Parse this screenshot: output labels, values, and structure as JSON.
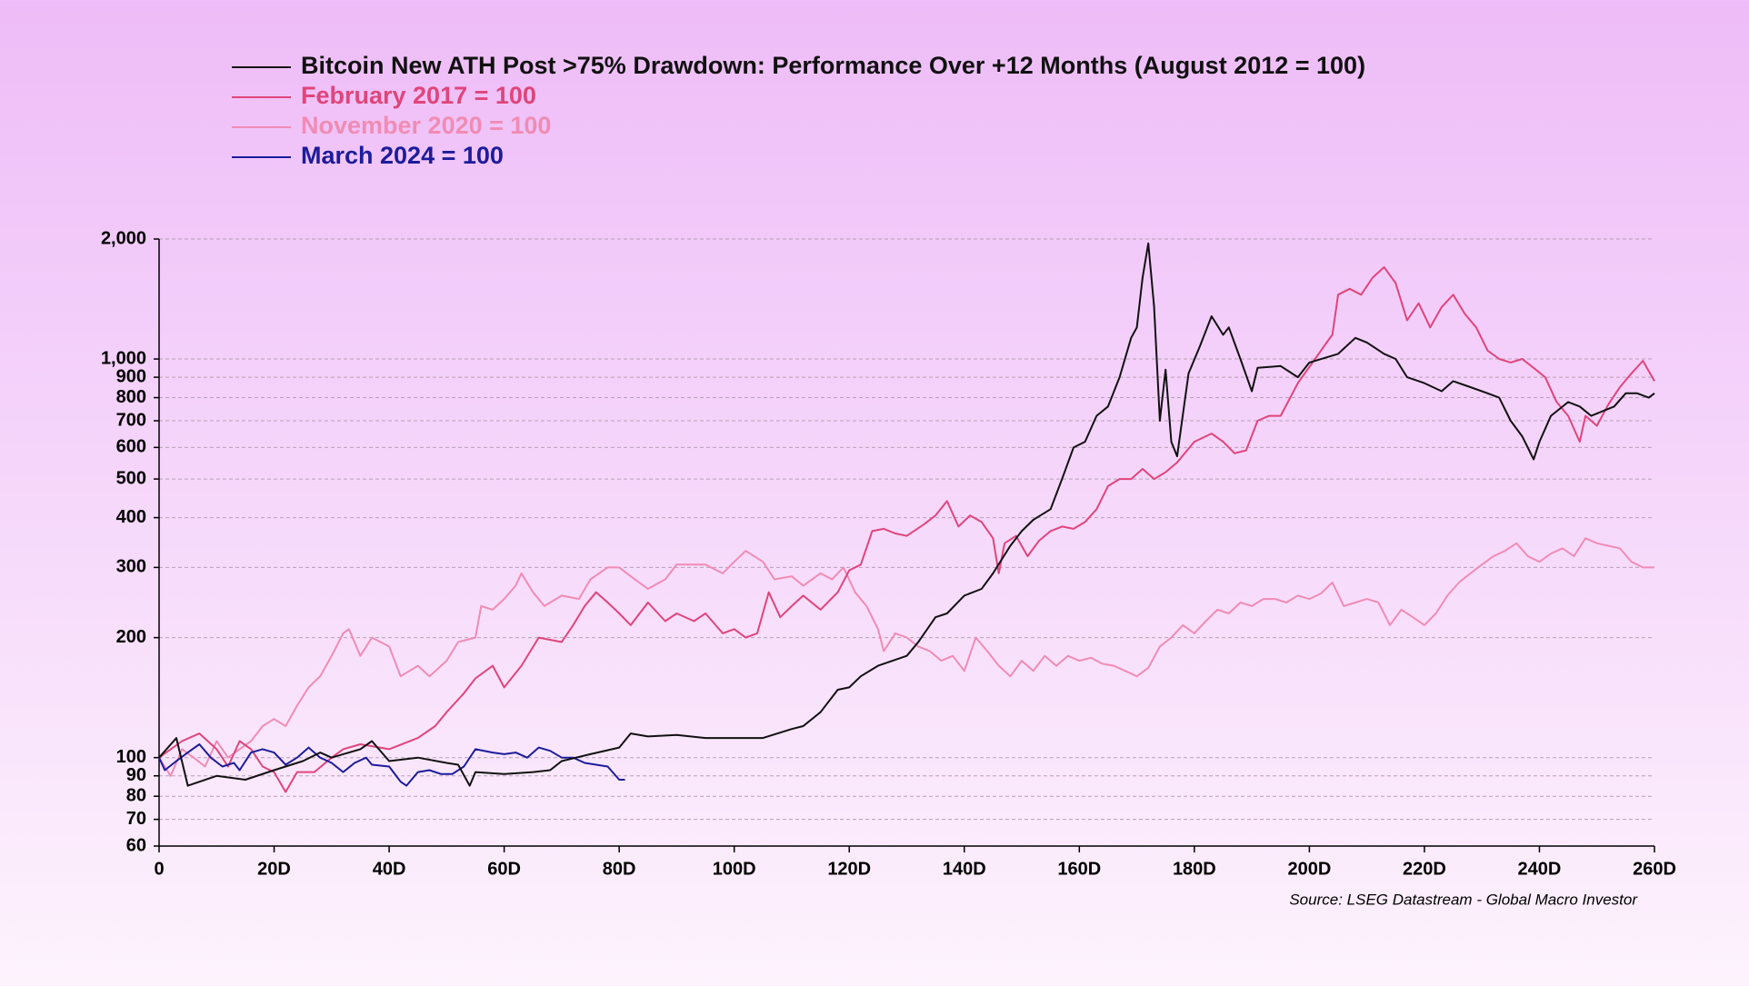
{
  "chart_data": {
    "type": "line",
    "title": "Bitcoin New ATH Post >75% Drawdown: Performance Over +12 Months (August 2012 = 100)",
    "source": "Source: LSEG Datastream - Global Macro Investor",
    "log_y": true,
    "grid": true,
    "legend": "top-left",
    "xlim": [
      0,
      260
    ],
    "xticks": [
      0,
      {
        "value": 20,
        "label": "20D"
      },
      {
        "value": 40,
        "label": "40D"
      },
      {
        "value": 60,
        "label": "60D"
      },
      {
        "value": 80,
        "label": "80D"
      },
      {
        "value": 100,
        "label": "100D"
      },
      {
        "value": 120,
        "label": "120D"
      },
      {
        "value": 140,
        "label": "140D"
      },
      {
        "value": 160,
        "label": "160D"
      },
      {
        "value": 180,
        "label": "180D"
      },
      {
        "value": 200,
        "label": "200D"
      },
      {
        "value": 220,
        "label": "220D"
      },
      {
        "value": 240,
        "label": "240D"
      },
      {
        "value": 260,
        "label": "260D"
      }
    ],
    "ylim": [
      60,
      2000
    ],
    "yticks": [
      60,
      70,
      80,
      90,
      100,
      200,
      300,
      400,
      500,
      600,
      700,
      800,
      900,
      {
        "value": 1000,
        "label": "1,000"
      },
      {
        "value": 2000,
        "label": "2,000"
      }
    ],
    "series": [
      {
        "name": "Bitcoin New ATH Post >75% Drawdown: Performance Over +12 Months (August 2012 = 100)",
        "color": "#111111",
        "x": [
          0,
          3,
          5,
          10,
          15,
          20,
          25,
          28,
          30,
          35,
          37,
          40,
          45,
          50,
          52,
          54,
          55,
          60,
          65,
          68,
          70,
          75,
          80,
          82,
          85,
          90,
          95,
          100,
          105,
          110,
          112,
          115,
          118,
          120,
          122,
          125,
          130,
          132,
          135,
          137,
          140,
          143,
          145,
          148,
          150,
          152,
          155,
          157,
          159,
          161,
          163,
          165,
          167,
          169,
          170,
          171,
          172,
          173,
          174,
          175,
          176,
          177,
          179,
          181,
          183,
          185,
          186,
          188,
          190,
          191,
          195,
          198,
          200,
          205,
          208,
          210,
          213,
          215,
          217,
          220,
          223,
          225,
          228,
          231,
          233,
          235,
          237,
          239,
          240,
          242,
          245,
          247,
          249,
          251,
          253,
          255,
          257,
          259,
          260
        ],
        "values": [
          100,
          112,
          85,
          90,
          88,
          93,
          98,
          103,
          100,
          105,
          110,
          98,
          100,
          97,
          96,
          85,
          92,
          91,
          92,
          93,
          98,
          102,
          106,
          115,
          113,
          114,
          112,
          112,
          112,
          118,
          120,
          130,
          148,
          150,
          160,
          170,
          180,
          195,
          225,
          230,
          255,
          265,
          290,
          340,
          370,
          395,
          420,
          500,
          600,
          620,
          720,
          760,
          900,
          1130,
          1200,
          1600,
          1950,
          1350,
          700,
          940,
          620,
          570,
          920,
          1080,
          1280,
          1150,
          1200,
          1000,
          830,
          950,
          960,
          900,
          980,
          1030,
          1130,
          1100,
          1030,
          1000,
          900,
          870,
          830,
          880,
          850,
          820,
          800,
          700,
          640,
          560,
          620,
          720,
          780,
          760,
          720,
          740,
          760,
          820,
          820,
          800,
          820
        ]
      },
      {
        "name": "February 2017 = 100",
        "color": "#e0457b",
        "x": [
          0,
          4,
          7,
          10,
          12,
          14,
          16,
          18,
          20,
          22,
          24,
          27,
          30,
          32,
          35,
          40,
          45,
          48,
          50,
          53,
          55,
          58,
          60,
          63,
          66,
          70,
          72,
          74,
          76,
          78,
          80,
          82,
          85,
          88,
          90,
          93,
          95,
          98,
          100,
          102,
          104,
          106,
          108,
          110,
          112,
          115,
          118,
          120,
          122,
          124,
          126,
          128,
          130,
          133,
          135,
          137,
          139,
          141,
          143,
          145,
          146,
          147,
          149,
          151,
          153,
          155,
          157,
          159,
          161,
          163,
          165,
          167,
          169,
          171,
          173,
          175,
          177,
          180,
          183,
          185,
          187,
          189,
          191,
          193,
          195,
          198,
          201,
          203,
          204,
          205,
          207,
          209,
          211,
          213,
          215,
          217,
          219,
          221,
          223,
          225,
          227,
          229,
          231,
          233,
          235,
          237,
          239,
          241,
          243,
          245,
          247,
          248,
          250,
          252,
          254,
          256,
          258,
          260
        ],
        "values": [
          100,
          110,
          115,
          105,
          95,
          110,
          105,
          95,
          92,
          82,
          92,
          92,
          100,
          105,
          108,
          105,
          112,
          120,
          130,
          145,
          158,
          170,
          150,
          170,
          200,
          195,
          215,
          240,
          260,
          245,
          230,
          215,
          245,
          220,
          230,
          220,
          230,
          205,
          210,
          200,
          205,
          260,
          225,
          240,
          255,
          235,
          260,
          295,
          305,
          370,
          375,
          365,
          360,
          385,
          405,
          440,
          380,
          405,
          390,
          355,
          290,
          345,
          360,
          320,
          350,
          370,
          380,
          375,
          390,
          420,
          480,
          500,
          500,
          530,
          500,
          520,
          550,
          620,
          650,
          620,
          580,
          590,
          700,
          720,
          720,
          870,
          1000,
          1100,
          1150,
          1450,
          1500,
          1450,
          1600,
          1700,
          1550,
          1250,
          1380,
          1200,
          1350,
          1450,
          1300,
          1200,
          1050,
          1000,
          980,
          1000,
          950,
          900,
          780,
          720,
          620,
          720,
          680,
          770,
          850,
          920,
          990,
          880
        ]
      },
      {
        "name": "November 2020 = 100",
        "color": "#f08cb4",
        "x": [
          0,
          2,
          4,
          6,
          8,
          10,
          12,
          14,
          16,
          18,
          20,
          22,
          24,
          26,
          28,
          30,
          32,
          33,
          35,
          37,
          40,
          42,
          45,
          47,
          50,
          52,
          55,
          56,
          58,
          60,
          62,
          63,
          65,
          67,
          70,
          73,
          75,
          78,
          80,
          82,
          85,
          88,
          90,
          95,
          98,
          100,
          102,
          105,
          107,
          110,
          112,
          115,
          117,
          119,
          121,
          123,
          125,
          126,
          128,
          130,
          132,
          134,
          136,
          138,
          140,
          142,
          144,
          146,
          148,
          150,
          152,
          154,
          156,
          158,
          160,
          162,
          164,
          166,
          168,
          170,
          172,
          174,
          176,
          178,
          180,
          182,
          184,
          186,
          188,
          190,
          192,
          194,
          196,
          198,
          200,
          202,
          204,
          206,
          208,
          210,
          212,
          214,
          216,
          218,
          220,
          222,
          224,
          226,
          228,
          230,
          232,
          234,
          236,
          238,
          240,
          242,
          244,
          246,
          248,
          250,
          252,
          254,
          256,
          258,
          260
        ],
        "values": [
          100,
          90,
          105,
          100,
          95,
          110,
          100,
          105,
          110,
          120,
          125,
          120,
          135,
          150,
          160,
          180,
          205,
          210,
          180,
          200,
          190,
          160,
          170,
          160,
          175,
          195,
          200,
          240,
          235,
          250,
          270,
          290,
          260,
          240,
          255,
          250,
          280,
          300,
          300,
          285,
          265,
          280,
          305,
          305,
          290,
          310,
          330,
          310,
          280,
          285,
          270,
          290,
          280,
          300,
          260,
          240,
          210,
          185,
          205,
          200,
          190,
          185,
          175,
          180,
          165,
          200,
          185,
          170,
          160,
          175,
          165,
          180,
          170,
          180,
          175,
          178,
          172,
          170,
          165,
          160,
          168,
          190,
          200,
          215,
          205,
          220,
          235,
          230,
          245,
          240,
          250,
          250,
          245,
          255,
          250,
          258,
          275,
          240,
          245,
          250,
          245,
          215,
          235,
          225,
          215,
          230,
          255,
          275,
          290,
          305,
          320,
          330,
          345,
          320,
          310,
          325,
          335,
          320,
          355,
          345,
          340,
          335,
          310,
          300,
          300
        ]
      },
      {
        "name": "March 2024 = 100",
        "color": "#1c1c9c",
        "x": [
          0,
          1,
          3,
          5,
          7,
          9,
          11,
          13,
          14,
          16,
          18,
          20,
          22,
          24,
          26,
          28,
          30,
          32,
          34,
          36,
          37,
          40,
          42,
          43,
          45,
          47,
          49,
          51,
          53,
          55,
          58,
          60,
          62,
          64,
          66,
          68,
          70,
          72,
          74,
          76,
          78,
          80,
          81
        ],
        "values": [
          100,
          93,
          98,
          103,
          108,
          100,
          95,
          97,
          93,
          103,
          105,
          103,
          96,
          100,
          106,
          100,
          97,
          92,
          97,
          100,
          96,
          95,
          87,
          85,
          92,
          93,
          91,
          91,
          95,
          105,
          103,
          102,
          103,
          100,
          106,
          104,
          100,
          100,
          97,
          96,
          95,
          88,
          88
        ]
      }
    ]
  }
}
